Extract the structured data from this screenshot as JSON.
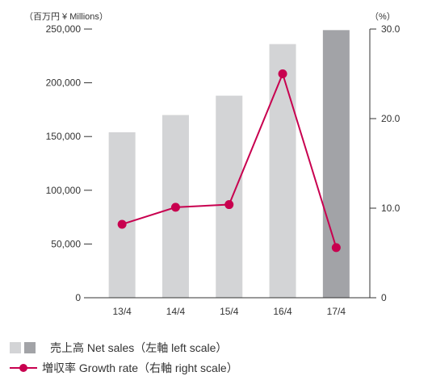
{
  "chart_data": {
    "type": "bar",
    "categories": [
      "13/4",
      "14/4",
      "15/4",
      "16/4",
      "17/4"
    ],
    "left_unit": "（百万円 ¥ Millions）",
    "right_unit": "（%）",
    "left_ylim": [
      0,
      250000
    ],
    "right_ylim": [
      0,
      30
    ],
    "left_ticks": [
      "0",
      "50,000",
      "100,000",
      "150,000",
      "200,000",
      "250,000"
    ],
    "right_ticks": [
      "0",
      "10.0",
      "20.0",
      "30.0"
    ],
    "series": [
      {
        "name": "売上高 Net sales（左軸 left scale）",
        "type": "bar",
        "axis": "left",
        "values": [
          154000,
          170000,
          188000,
          236000,
          249000
        ]
      },
      {
        "name": "増収率 Growth rate（右軸 right scale）",
        "type": "line",
        "axis": "right",
        "values": [
          8.2,
          10.1,
          10.4,
          25.0,
          5.6
        ]
      }
    ],
    "colors": {
      "bar": "#d3d4d6",
      "bar_highlight": "#a2a3a7",
      "line": "#c8004f",
      "axis": "#333333"
    }
  }
}
